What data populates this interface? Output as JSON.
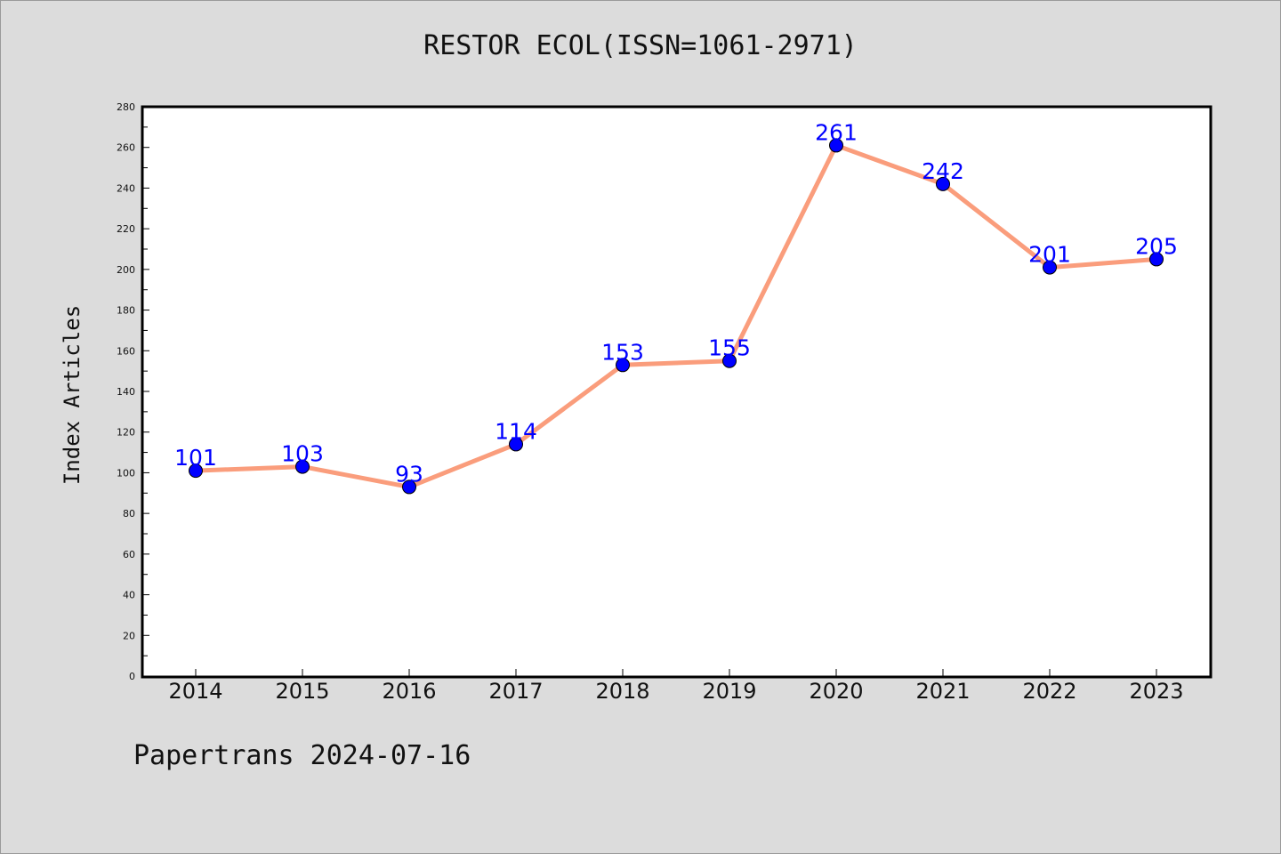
{
  "chart_data": {
    "type": "line",
    "title": "RESTOR ECOL(ISSN=1061-2971)",
    "ylabel": "Index Articles",
    "xlabel": "",
    "categories": [
      "2014",
      "2015",
      "2016",
      "2017",
      "2018",
      "2019",
      "2020",
      "2021",
      "2022",
      "2023"
    ],
    "series": [
      {
        "values": [
          101,
          103,
          93,
          114,
          153,
          155,
          261,
          242,
          201,
          205
        ]
      }
    ],
    "ylim": [
      0,
      280
    ],
    "ytick_step": 20,
    "grid": false,
    "line_color": "#fa9d7c",
    "marker_color": "#0000ff",
    "label_color": "#0000ff"
  },
  "footer": {
    "note": "Papertrans 2024-07-16"
  }
}
